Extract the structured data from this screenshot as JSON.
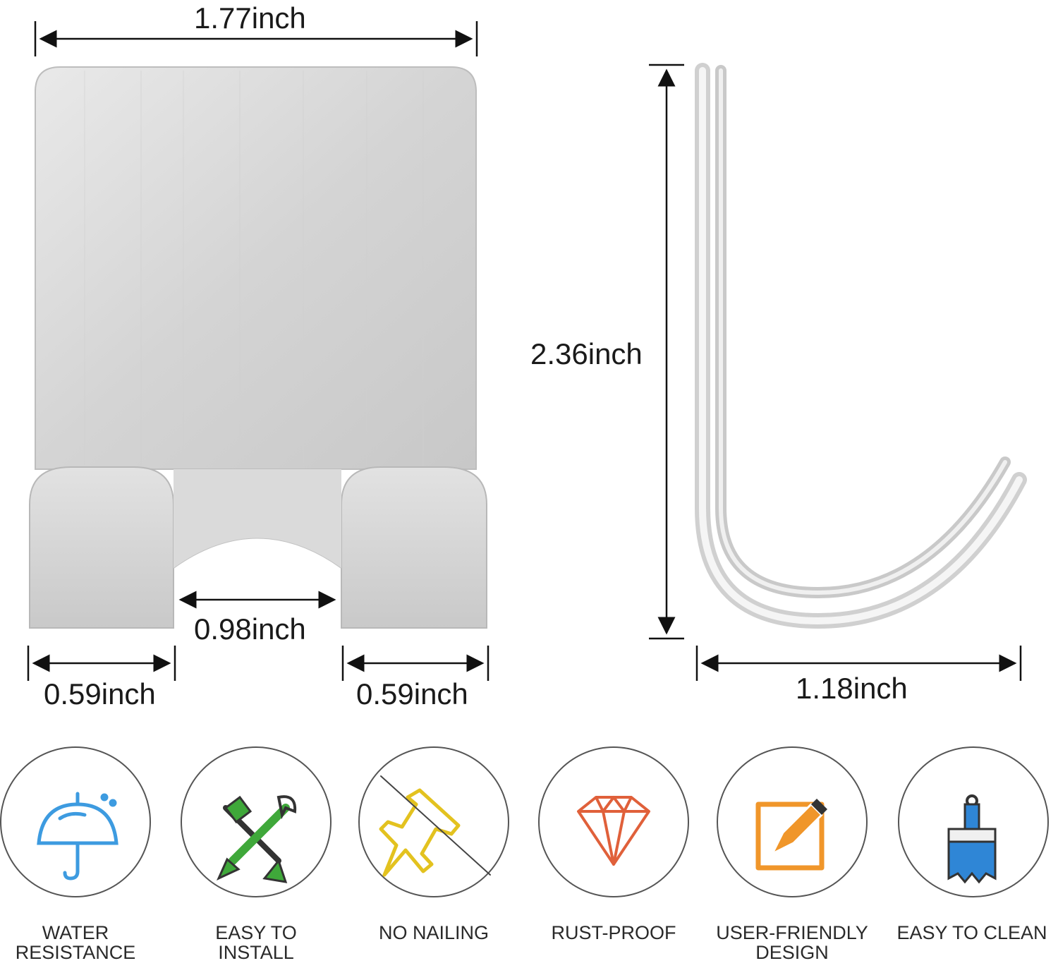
{
  "dimensions": {
    "width_top": "1.77inch",
    "height_side": "2.36inch",
    "gap_middle": "0.98inch",
    "foot_left": "0.59inch",
    "foot_right": "0.59inch",
    "depth_bottom": "1.18inch"
  },
  "features": [
    {
      "label": "WATER\nRESISTANCE",
      "icon": "umbrella-icon",
      "color": "#3d9be0"
    },
    {
      "label": "EASY TO\nINSTALL",
      "icon": "tools-icon",
      "color": "#3fa83a"
    },
    {
      "label": "NO NAILING",
      "icon": "no-pushpin-icon",
      "color": "#e3c21f"
    },
    {
      "label": "RUST-PROOF",
      "icon": "diamond-icon",
      "color": "#e0603a"
    },
    {
      "label": "USER-FRIENDLY\nDESIGN",
      "icon": "edit-icon",
      "color": "#f0962a"
    },
    {
      "label": "EASY TO CLEAN",
      "icon": "paintbrush-icon",
      "color": "#2f86d6"
    }
  ]
}
